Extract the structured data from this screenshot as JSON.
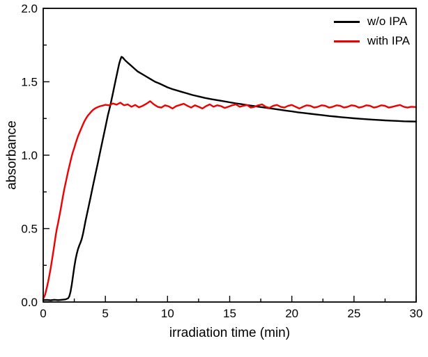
{
  "figure": {
    "background": "#ffffff",
    "axis_color": "#000000"
  },
  "chart_data": {
    "type": "line",
    "title": "",
    "xlabel": "irradiation time (min)",
    "ylabel": "absorbance",
    "xlim": [
      0,
      30
    ],
    "ylim": [
      0,
      2.0
    ],
    "x_tick_values": [
      0,
      5,
      10,
      15,
      20,
      25,
      30
    ],
    "x_tick_labels": [
      "0",
      "5",
      "10",
      "15",
      "20",
      "25",
      "30"
    ],
    "y_tick_values": [
      0,
      0.5,
      1.0,
      1.5,
      2.0
    ],
    "y_tick_labels": [
      "0.0",
      "0.5",
      "1.0",
      "1.5",
      "2.0"
    ],
    "x_minor_step": 2.5,
    "y_minor_step": 0.25,
    "grid": false,
    "legend_position": "top-right",
    "series": [
      {
        "name": "w/o IPA",
        "color": "#000000",
        "points": [
          [
            0,
            0.013
          ],
          [
            0.3,
            0.014
          ],
          [
            0.6,
            0.012
          ],
          [
            0.9,
            0.015
          ],
          [
            1.2,
            0.013
          ],
          [
            1.5,
            0.015
          ],
          [
            1.8,
            0.018
          ],
          [
            2.0,
            0.025
          ],
          [
            2.1,
            0.04
          ],
          [
            2.2,
            0.07
          ],
          [
            2.3,
            0.12
          ],
          [
            2.4,
            0.18
          ],
          [
            2.5,
            0.24
          ],
          [
            2.6,
            0.29
          ],
          [
            2.7,
            0.33
          ],
          [
            2.8,
            0.36
          ],
          [
            2.9,
            0.385
          ],
          [
            3.0,
            0.405
          ],
          [
            3.1,
            0.43
          ],
          [
            3.2,
            0.465
          ],
          [
            3.3,
            0.505
          ],
          [
            3.4,
            0.55
          ],
          [
            3.6,
            0.63
          ],
          [
            3.8,
            0.71
          ],
          [
            4.0,
            0.79
          ],
          [
            4.2,
            0.87
          ],
          [
            4.4,
            0.95
          ],
          [
            4.6,
            1.03
          ],
          [
            4.8,
            1.11
          ],
          [
            5.0,
            1.19
          ],
          [
            5.2,
            1.27
          ],
          [
            5.4,
            1.34
          ],
          [
            5.6,
            1.42
          ],
          [
            5.8,
            1.5
          ],
          [
            6.0,
            1.58
          ],
          [
            6.1,
            1.62
          ],
          [
            6.2,
            1.65
          ],
          [
            6.3,
            1.67
          ],
          [
            6.4,
            1.665
          ],
          [
            6.5,
            1.655
          ],
          [
            6.6,
            1.645
          ],
          [
            6.8,
            1.63
          ],
          [
            7.0,
            1.615
          ],
          [
            7.2,
            1.6
          ],
          [
            7.4,
            1.585
          ],
          [
            7.6,
            1.57
          ],
          [
            7.8,
            1.56
          ],
          [
            8.0,
            1.55
          ],
          [
            8.3,
            1.535
          ],
          [
            8.6,
            1.52
          ],
          [
            9.0,
            1.5
          ],
          [
            9.3,
            1.49
          ],
          [
            9.6,
            1.478
          ],
          [
            10.0,
            1.462
          ],
          [
            10.4,
            1.45
          ],
          [
            10.8,
            1.44
          ],
          [
            11.2,
            1.43
          ],
          [
            11.6,
            1.42
          ],
          [
            12.0,
            1.41
          ],
          [
            12.5,
            1.4
          ],
          [
            13.0,
            1.39
          ],
          [
            13.5,
            1.382
          ],
          [
            14.0,
            1.375
          ],
          [
            14.5,
            1.368
          ],
          [
            15.0,
            1.36
          ],
          [
            15.5,
            1.353
          ],
          [
            16.0,
            1.347
          ],
          [
            16.5,
            1.34
          ],
          [
            17.0,
            1.334
          ],
          [
            17.5,
            1.328
          ],
          [
            18.0,
            1.322
          ],
          [
            18.5,
            1.316
          ],
          [
            19.0,
            1.31
          ],
          [
            19.5,
            1.304
          ],
          [
            20.0,
            1.298
          ],
          [
            20.5,
            1.292
          ],
          [
            21.0,
            1.287
          ],
          [
            21.5,
            1.282
          ],
          [
            22.0,
            1.277
          ],
          [
            22.5,
            1.272
          ],
          [
            23.0,
            1.267
          ],
          [
            23.5,
            1.263
          ],
          [
            24.0,
            1.259
          ],
          [
            24.5,
            1.255
          ],
          [
            25.0,
            1.251
          ],
          [
            25.5,
            1.248
          ],
          [
            26.0,
            1.245
          ],
          [
            26.5,
            1.242
          ],
          [
            27.0,
            1.24
          ],
          [
            27.5,
            1.237
          ],
          [
            28.0,
            1.235
          ],
          [
            28.5,
            1.233
          ],
          [
            29.0,
            1.231
          ],
          [
            29.5,
            1.23
          ],
          [
            30.0,
            1.229
          ]
        ]
      },
      {
        "name": "with IPA",
        "color": "#ee0000",
        "points": [
          [
            0,
            0.02
          ],
          [
            0.15,
            0.05
          ],
          [
            0.3,
            0.1
          ],
          [
            0.45,
            0.16
          ],
          [
            0.6,
            0.23
          ],
          [
            0.75,
            0.31
          ],
          [
            0.9,
            0.39
          ],
          [
            1.0,
            0.45
          ],
          [
            1.1,
            0.5
          ],
          [
            1.2,
            0.54
          ],
          [
            1.3,
            0.585
          ],
          [
            1.4,
            0.63
          ],
          [
            1.5,
            0.68
          ],
          [
            1.6,
            0.725
          ],
          [
            1.7,
            0.77
          ],
          [
            1.8,
            0.81
          ],
          [
            1.9,
            0.85
          ],
          [
            2.0,
            0.89
          ],
          [
            2.1,
            0.925
          ],
          [
            2.2,
            0.96
          ],
          [
            2.3,
            0.995
          ],
          [
            2.4,
            1.025
          ],
          [
            2.5,
            1.05
          ],
          [
            2.6,
            1.08
          ],
          [
            2.7,
            1.105
          ],
          [
            2.8,
            1.13
          ],
          [
            2.9,
            1.15
          ],
          [
            3.0,
            1.17
          ],
          [
            3.1,
            1.19
          ],
          [
            3.2,
            1.21
          ],
          [
            3.3,
            1.228
          ],
          [
            3.4,
            1.244
          ],
          [
            3.5,
            1.258
          ],
          [
            3.6,
            1.27
          ],
          [
            3.7,
            1.28
          ],
          [
            3.8,
            1.29
          ],
          [
            3.9,
            1.3
          ],
          [
            4.0,
            1.308
          ],
          [
            4.2,
            1.32
          ],
          [
            4.4,
            1.328
          ],
          [
            4.6,
            1.334
          ],
          [
            4.8,
            1.338
          ],
          [
            5.0,
            1.343
          ],
          [
            5.3,
            1.34
          ],
          [
            5.6,
            1.352
          ],
          [
            5.9,
            1.344
          ],
          [
            6.2,
            1.358
          ],
          [
            6.5,
            1.34
          ],
          [
            6.8,
            1.346
          ],
          [
            7.1,
            1.33
          ],
          [
            7.4,
            1.342
          ],
          [
            7.7,
            1.326
          ],
          [
            8.0,
            1.336
          ],
          [
            8.3,
            1.35
          ],
          [
            8.6,
            1.368
          ],
          [
            8.9,
            1.346
          ],
          [
            9.2,
            1.33
          ],
          [
            9.5,
            1.324
          ],
          [
            9.8,
            1.34
          ],
          [
            10.1,
            1.332
          ],
          [
            10.4,
            1.318
          ],
          [
            10.7,
            1.334
          ],
          [
            11.0,
            1.342
          ],
          [
            11.3,
            1.35
          ],
          [
            11.6,
            1.336
          ],
          [
            11.9,
            1.324
          ],
          [
            12.2,
            1.34
          ],
          [
            12.5,
            1.33
          ],
          [
            12.8,
            1.318
          ],
          [
            13.1,
            1.334
          ],
          [
            13.4,
            1.346
          ],
          [
            13.7,
            1.33
          ],
          [
            14.0,
            1.34
          ],
          [
            14.3,
            1.334
          ],
          [
            14.6,
            1.322
          ],
          [
            14.9,
            1.33
          ],
          [
            15.2,
            1.34
          ],
          [
            15.5,
            1.346
          ],
          [
            15.8,
            1.33
          ],
          [
            16.1,
            1.336
          ],
          [
            16.4,
            1.342
          ],
          [
            16.7,
            1.324
          ],
          [
            17.0,
            1.33
          ],
          [
            17.3,
            1.34
          ],
          [
            17.6,
            1.346
          ],
          [
            17.9,
            1.33
          ],
          [
            18.2,
            1.322
          ],
          [
            18.5,
            1.336
          ],
          [
            18.8,
            1.342
          ],
          [
            19.1,
            1.33
          ],
          [
            19.4,
            1.324
          ],
          [
            19.7,
            1.336
          ],
          [
            20.0,
            1.342
          ],
          [
            20.3,
            1.33
          ],
          [
            20.6,
            1.318
          ],
          [
            20.9,
            1.33
          ],
          [
            21.2,
            1.34
          ],
          [
            21.5,
            1.336
          ],
          [
            21.8,
            1.324
          ],
          [
            22.1,
            1.33
          ],
          [
            22.4,
            1.34
          ],
          [
            22.7,
            1.336
          ],
          [
            23.0,
            1.324
          ],
          [
            23.3,
            1.33
          ],
          [
            23.6,
            1.34
          ],
          [
            23.9,
            1.336
          ],
          [
            24.2,
            1.324
          ],
          [
            24.5,
            1.33
          ],
          [
            24.8,
            1.34
          ],
          [
            25.1,
            1.336
          ],
          [
            25.4,
            1.324
          ],
          [
            25.7,
            1.33
          ],
          [
            26.0,
            1.34
          ],
          [
            26.3,
            1.336
          ],
          [
            26.6,
            1.324
          ],
          [
            26.9,
            1.33
          ],
          [
            27.2,
            1.34
          ],
          [
            27.5,
            1.336
          ],
          [
            27.8,
            1.324
          ],
          [
            28.1,
            1.33
          ],
          [
            28.4,
            1.336
          ],
          [
            28.7,
            1.342
          ],
          [
            29.0,
            1.33
          ],
          [
            29.3,
            1.324
          ],
          [
            29.6,
            1.33
          ],
          [
            30.0,
            1.328
          ]
        ]
      }
    ]
  }
}
